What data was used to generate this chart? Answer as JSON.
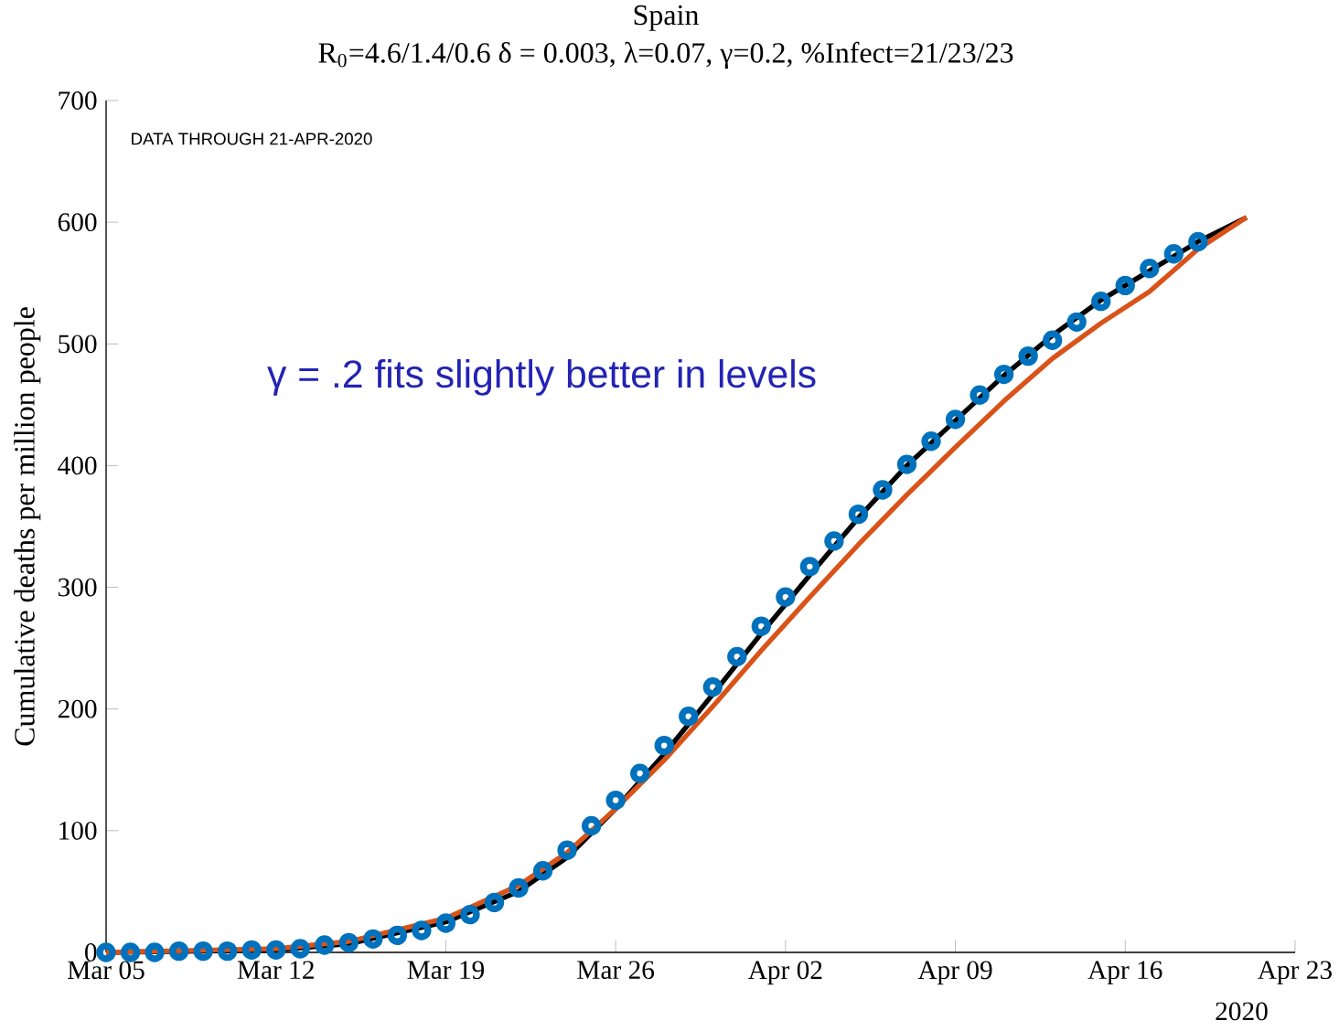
{
  "chart_data": {
    "type": "line",
    "title": "Spain",
    "subtitle": "R$_{0}$=4.6/1.4/0.6  δ = 0.003,  λ=0.07,  γ=0.2,  %Infect=21/23/23",
    "ylabel": "Cumulative deaths per million people",
    "annotations": [
      "DATA THROUGH 21-APR-2020",
      "γ = .2 fits slightly better in levels",
      "2020"
    ],
    "xlim": [
      "2020-03-05",
      "2020-04-23"
    ],
    "xticks": [
      {
        "value": "2020-03-05",
        "label": "Mar 05"
      },
      {
        "value": "2020-03-12",
        "label": "Mar 12"
      },
      {
        "value": "2020-03-19",
        "label": "Mar 19"
      },
      {
        "value": "2020-03-26",
        "label": "Mar 26"
      },
      {
        "value": "2020-04-02",
        "label": "Apr 02"
      },
      {
        "value": "2020-04-09",
        "label": "Apr 09"
      },
      {
        "value": "2020-04-16",
        "label": "Apr 16"
      },
      {
        "value": "2020-04-23",
        "label": "Apr 23"
      }
    ],
    "ylim": [
      0,
      700
    ],
    "yticks": [
      0,
      100,
      200,
      300,
      400,
      500,
      600,
      700
    ],
    "grid": false,
    "legend": false,
    "series": [
      {
        "type": "line",
        "color": "#000000",
        "marker": "none",
        "line_style": "solid",
        "x": [
          "2020-03-05",
          "2020-03-12",
          "2020-03-15",
          "2020-03-19",
          "2020-03-22",
          "2020-03-24",
          "2020-03-26",
          "2020-03-28",
          "2020-03-30",
          "2020-04-01",
          "2020-04-03",
          "2020-04-05",
          "2020-04-07",
          "2020-04-09",
          "2020-04-11",
          "2020-04-13",
          "2020-04-15",
          "2020-04-17",
          "2020-04-19",
          "2020-04-21"
        ],
        "values": [
          0,
          2,
          7,
          25,
          50,
          78,
          118,
          163,
          212,
          262,
          310,
          357,
          400,
          437,
          474,
          507,
          536,
          560,
          584,
          604
        ]
      },
      {
        "type": "line",
        "color": "#d95319",
        "marker": "none",
        "line_style": "solid",
        "x": [
          "2020-03-05",
          "2020-03-12",
          "2020-03-15",
          "2020-03-19",
          "2020-03-22",
          "2020-03-24",
          "2020-03-26",
          "2020-03-28",
          "2020-03-30",
          "2020-04-01",
          "2020-04-03",
          "2020-04-05",
          "2020-04-07",
          "2020-04-09",
          "2020-04-11",
          "2020-04-13",
          "2020-04-15",
          "2020-04-17",
          "2020-04-19",
          "2020-04-21"
        ],
        "values": [
          0,
          3,
          9,
          28,
          55,
          82,
          118,
          158,
          202,
          248,
          292,
          335,
          376,
          415,
          453,
          488,
          517,
          543,
          578,
          604
        ]
      },
      {
        "type": "scatter",
        "color": "#0072bd",
        "marker": "circle",
        "x": [
          "2020-03-05",
          "2020-03-06",
          "2020-03-07",
          "2020-03-08",
          "2020-03-09",
          "2020-03-10",
          "2020-03-11",
          "2020-03-12",
          "2020-03-13",
          "2020-03-14",
          "2020-03-15",
          "2020-03-16",
          "2020-03-17",
          "2020-03-18",
          "2020-03-19",
          "2020-03-20",
          "2020-03-21",
          "2020-03-22",
          "2020-03-23",
          "2020-03-24",
          "2020-03-25",
          "2020-03-26",
          "2020-03-27",
          "2020-03-28",
          "2020-03-29",
          "2020-03-30",
          "2020-03-31",
          "2020-04-01",
          "2020-04-02",
          "2020-04-03",
          "2020-04-04",
          "2020-04-05",
          "2020-04-06",
          "2020-04-07",
          "2020-04-08",
          "2020-04-09",
          "2020-04-10",
          "2020-04-11",
          "2020-04-12",
          "2020-04-13",
          "2020-04-14",
          "2020-04-15",
          "2020-04-16",
          "2020-04-17",
          "2020-04-18",
          "2020-04-19"
        ],
        "values": [
          0,
          0,
          0,
          1,
          1,
          1,
          2,
          2,
          3,
          6,
          8,
          11,
          14,
          18,
          24,
          31,
          41,
          53,
          67,
          84,
          104,
          125,
          147,
          170,
          194,
          218,
          243,
          268,
          292,
          317,
          338,
          360,
          380,
          401,
          420,
          438,
          458,
          475,
          490,
          503,
          518,
          535,
          548,
          562,
          574,
          584
        ]
      }
    ]
  }
}
